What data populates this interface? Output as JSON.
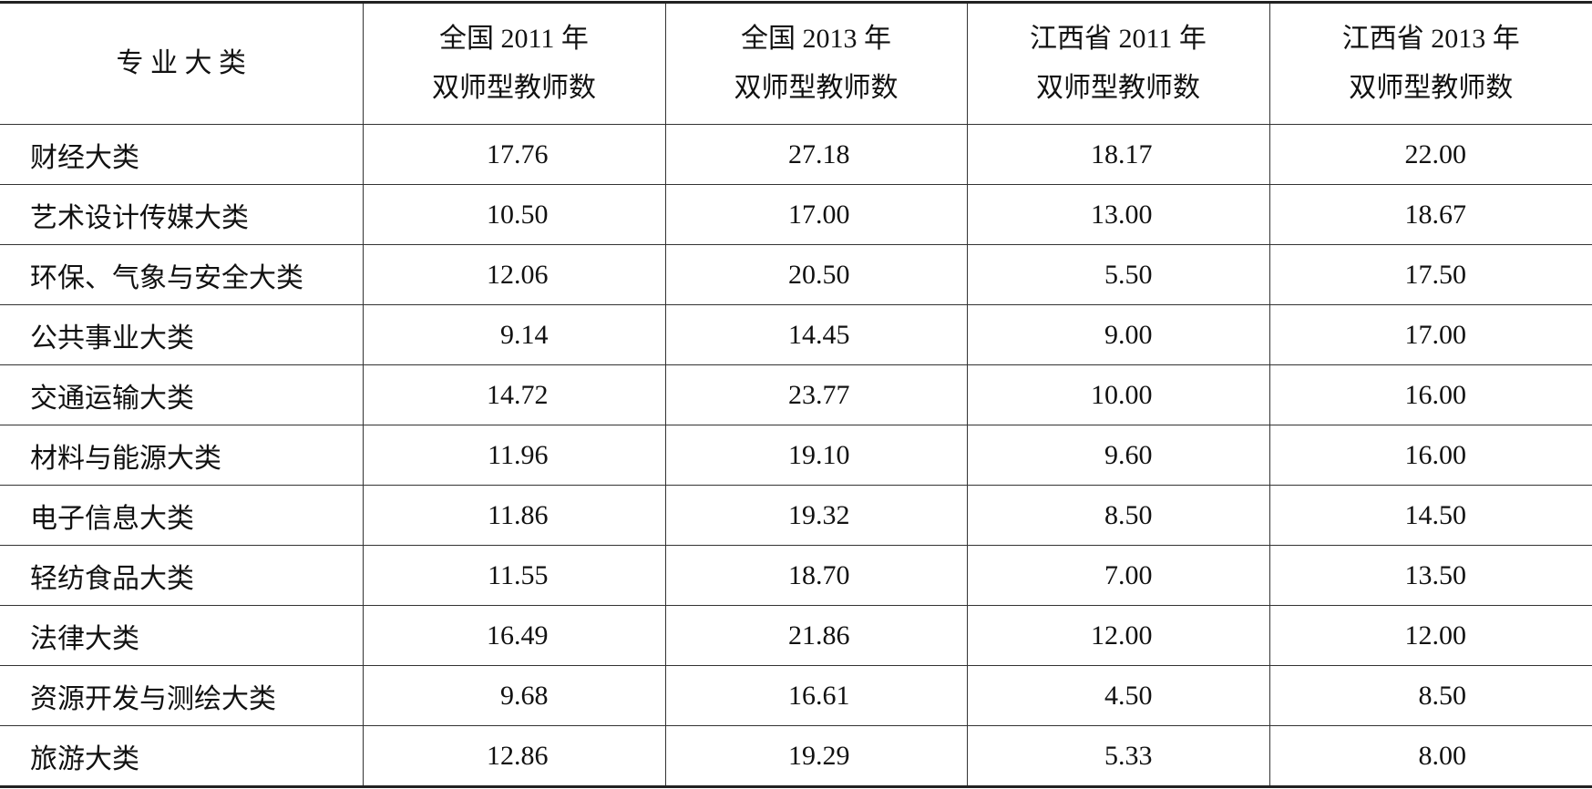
{
  "table": {
    "header": [
      [
        "专 业 大 类"
      ],
      [
        "全国 2011 年",
        "双师型教师数"
      ],
      [
        "全国 2013 年",
        "双师型教师数"
      ],
      [
        "江西省 2011 年",
        "双师型教师数"
      ],
      [
        "江西省 2013 年",
        "双师型教师数"
      ]
    ],
    "rows": [
      [
        "财经大类",
        "17.76",
        "27.18",
        "18.17",
        "22.00"
      ],
      [
        "艺术设计传媒大类",
        "10.50",
        "17.00",
        "13.00",
        "18.67"
      ],
      [
        "环保、气象与安全大类",
        "12.06",
        "20.50",
        "5.50",
        "17.50"
      ],
      [
        "公共事业大类",
        "9.14",
        "14.45",
        "9.00",
        "17.00"
      ],
      [
        "交通运输大类",
        "14.72",
        "23.77",
        "10.00",
        "16.00"
      ],
      [
        "材料与能源大类",
        "11.96",
        "19.10",
        "9.60",
        "16.00"
      ],
      [
        "电子信息大类",
        "11.86",
        "19.32",
        "8.50",
        "14.50"
      ],
      [
        "轻纺食品大类",
        "11.55",
        "18.70",
        "7.00",
        "13.50"
      ],
      [
        "法律大类",
        "16.49",
        "21.86",
        "12.00",
        "12.00"
      ],
      [
        "资源开发与测绘大类",
        "9.68",
        "16.61",
        "4.50",
        "8.50"
      ],
      [
        "旅游大类",
        "12.86",
        "19.29",
        "5.33",
        "8.00"
      ]
    ]
  }
}
